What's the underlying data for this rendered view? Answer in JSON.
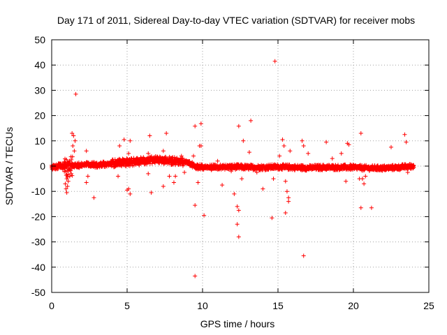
{
  "chart_data": {
    "type": "scatter",
    "title": "Day 171 of 2011, Sidereal Day-to-day VTEC variation (SDTVAR) for receiver mobs",
    "xlabel": "GPS time / hours",
    "ylabel": "SDTVAR / TECUs",
    "xlim": [
      0,
      25
    ],
    "ylim": [
      -50,
      50
    ],
    "xticks": [
      0,
      5,
      10,
      15,
      20,
      25
    ],
    "yticks": [
      -50,
      -40,
      -30,
      -20,
      -10,
      0,
      10,
      20,
      30,
      40,
      50
    ],
    "xtick_labels": [
      "0",
      "5",
      "10",
      "15",
      "20",
      "25"
    ],
    "ytick_labels": [
      "-50",
      "-40",
      "-30",
      "-20",
      "-10",
      "0",
      "10",
      "20",
      "30",
      "40",
      "50"
    ],
    "grid": true,
    "marker": "+",
    "marker_color": "#ff0000",
    "series": [
      {
        "name": "SDTVAR",
        "baseline": [
          [
            0,
            -0.5
          ],
          [
            0.5,
            0
          ],
          [
            1,
            -0.5
          ],
          [
            1.5,
            0
          ],
          [
            2,
            0.5
          ],
          [
            3,
            0.5
          ],
          [
            4,
            1
          ],
          [
            5,
            1.5
          ],
          [
            6,
            2
          ],
          [
            7,
            2.5
          ],
          [
            8,
            2
          ],
          [
            9,
            1.5
          ],
          [
            9.5,
            0
          ],
          [
            10,
            -0.5
          ],
          [
            11,
            -0.5
          ],
          [
            12,
            -0.3
          ],
          [
            13,
            -0.5
          ],
          [
            14,
            -0.5
          ],
          [
            15,
            -0.3
          ],
          [
            16,
            -0.5
          ],
          [
            17,
            -0.7
          ],
          [
            18,
            -0.5
          ],
          [
            19,
            -0.5
          ],
          [
            20,
            -0.5
          ],
          [
            21,
            -0.8
          ],
          [
            22,
            -0.8
          ],
          [
            23,
            -0.5
          ],
          [
            24,
            0
          ]
        ],
        "points": [
          [
            1.0,
            -10.5
          ],
          [
            0.95,
            -9
          ],
          [
            1.05,
            -8
          ],
          [
            0.9,
            -7
          ],
          [
            1.1,
            -6
          ],
          [
            1.0,
            -5
          ],
          [
            1.2,
            -4
          ],
          [
            1.3,
            -3
          ],
          [
            1.5,
            6
          ],
          [
            1.4,
            8
          ],
          [
            1.35,
            13
          ],
          [
            1.45,
            12
          ],
          [
            1.55,
            10
          ],
          [
            1.6,
            28.5
          ],
          [
            2.3,
            6
          ],
          [
            2.4,
            -4
          ],
          [
            2.3,
            -6.5
          ],
          [
            2.8,
            -12.5
          ],
          [
            4.5,
            8
          ],
          [
            4.4,
            -4
          ],
          [
            4.8,
            10.5
          ],
          [
            5.1,
            5
          ],
          [
            5.2,
            10
          ],
          [
            5.1,
            -9
          ],
          [
            5.2,
            -11
          ],
          [
            5.0,
            -9.5
          ],
          [
            6.4,
            5
          ],
          [
            6.5,
            12
          ],
          [
            6.4,
            -3
          ],
          [
            6.6,
            -10.5
          ],
          [
            7.4,
            6
          ],
          [
            7.5,
            2.5
          ],
          [
            7.4,
            -8
          ],
          [
            7.6,
            13
          ],
          [
            7.8,
            -4
          ],
          [
            8.1,
            -6.5
          ],
          [
            8.2,
            -4
          ],
          [
            8.6,
            4
          ],
          [
            8.8,
            -2.5
          ],
          [
            9.4,
            4
          ],
          [
            9.5,
            15.8
          ],
          [
            9.5,
            -15.5
          ],
          [
            9.5,
            -43.5
          ],
          [
            9.7,
            -6.5
          ],
          [
            9.8,
            8
          ],
          [
            9.9,
            16.8
          ],
          [
            9.9,
            8
          ],
          [
            10.1,
            -19.5
          ],
          [
            11.0,
            2
          ],
          [
            11.3,
            -7.5
          ],
          [
            11.9,
            -2
          ],
          [
            12.1,
            -11
          ],
          [
            12.3,
            -16
          ],
          [
            12.3,
            -23
          ],
          [
            12.4,
            -17.5
          ],
          [
            12.4,
            -28
          ],
          [
            12.4,
            15.8
          ],
          [
            12.6,
            -5
          ],
          [
            12.7,
            10
          ],
          [
            13.1,
            5.5
          ],
          [
            13.2,
            18
          ],
          [
            13.6,
            -2.5
          ],
          [
            14.0,
            -9
          ],
          [
            14.6,
            -20.5
          ],
          [
            14.7,
            -5
          ],
          [
            14.8,
            41.5
          ],
          [
            15.1,
            4
          ],
          [
            15.3,
            10.5
          ],
          [
            15.4,
            8
          ],
          [
            15.5,
            -18.5
          ],
          [
            15.6,
            -10
          ],
          [
            15.5,
            -6
          ],
          [
            15.7,
            -12.5
          ],
          [
            15.7,
            -14
          ],
          [
            15.8,
            6
          ],
          [
            16.6,
            10
          ],
          [
            16.7,
            8
          ],
          [
            16.7,
            -35.5
          ],
          [
            17.0,
            5
          ],
          [
            18.2,
            9.5
          ],
          [
            18.6,
            3
          ],
          [
            19.2,
            5
          ],
          [
            19.5,
            -6
          ],
          [
            19.6,
            9
          ],
          [
            19.7,
            8.5
          ],
          [
            20.4,
            -5
          ],
          [
            20.5,
            -16.5
          ],
          [
            20.5,
            13
          ],
          [
            20.6,
            -5
          ],
          [
            20.7,
            -7
          ],
          [
            20.8,
            -4
          ],
          [
            21.2,
            -16.5
          ],
          [
            22.5,
            7.5
          ],
          [
            23.4,
            12.5
          ],
          [
            23.5,
            9.5
          ],
          [
            23.6,
            -2.5
          ],
          [
            23.8,
            -1
          ]
        ]
      }
    ]
  }
}
